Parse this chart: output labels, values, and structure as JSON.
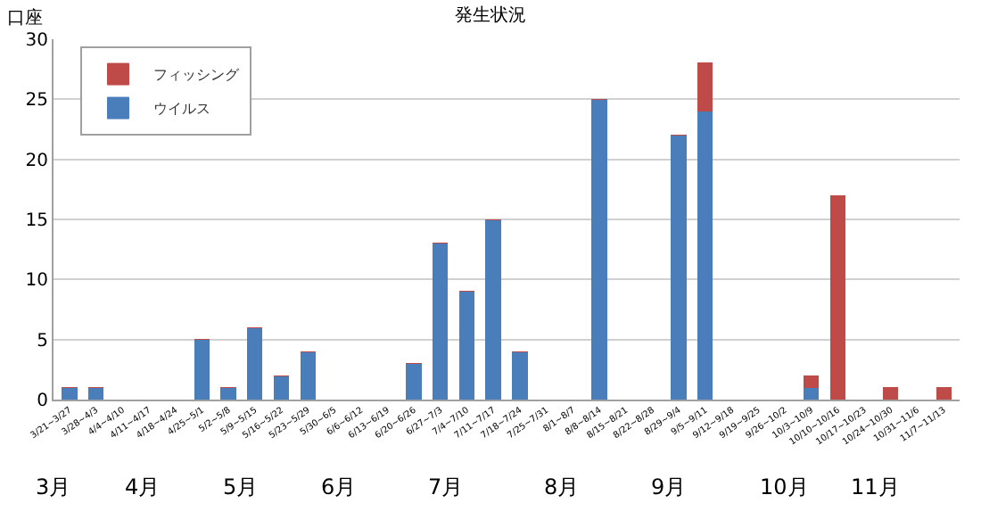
{
  "chart_data": {
    "type": "bar",
    "title": "発生状況",
    "ylabel": "口座",
    "stacked": true,
    "grid": "y",
    "legend": "top left",
    "categories": [
      "3/21~3/27",
      "3/28~4/3",
      "4/4~4/10",
      "4/11~4/17",
      "4/18~4/24",
      "4/25~5/1",
      "5/2~5/8",
      "5/9~5/15",
      "5/16~5/22",
      "5/23~5/29",
      "5/30~6/5",
      "6/6~6/12",
      "6/13~6/19",
      "6/20~6/26",
      "6/27~7/3",
      "7/4~7/10",
      "7/11~7/17",
      "7/18~7/24",
      "7/25~7/31",
      "8/1~8/7",
      "8/8~8/14",
      "8/15~8/21",
      "8/22~8/28",
      "8/29~9/4",
      "9/5~9/11",
      "9/12~9/18",
      "9/19~9/25",
      "9/26~10/2",
      "10/3~10/9",
      "10/10~10/16",
      "10/17~10/23",
      "10/24~10/30",
      "10/31~11/6",
      "11/7~11/13"
    ],
    "series": [
      {
        "name": "ウイルス",
        "color": "#4a7ebb",
        "values": [
          1,
          1,
          0,
          0,
          0,
          5,
          1,
          6,
          2,
          4,
          0,
          0,
          0,
          3,
          13,
          9,
          15,
          4,
          0,
          0,
          25,
          0,
          0,
          22,
          24,
          0,
          0,
          0,
          1,
          0,
          0,
          0,
          0,
          0
        ]
      },
      {
        "name": "フィッシング",
        "color": "#be4b48",
        "values": [
          0,
          0,
          0,
          0,
          0,
          0,
          0,
          0,
          0,
          0,
          0,
          0,
          0,
          0,
          0,
          0,
          0,
          0,
          0,
          0,
          0,
          0,
          0,
          0,
          4,
          0,
          0,
          0,
          1,
          17,
          0,
          1,
          0,
          1
        ]
      }
    ],
    "ylim": [
      0,
      30
    ],
    "yticks": [
      0,
      5,
      10,
      15,
      20,
      25,
      30
    ],
    "annotations": [
      "3月",
      "4月",
      "5月",
      "6月",
      "7月",
      "8月",
      "9月",
      "10月",
      "11月"
    ]
  }
}
